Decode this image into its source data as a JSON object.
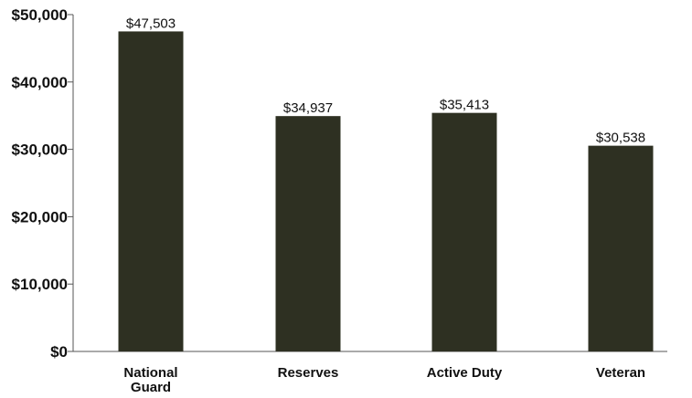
{
  "chart_data": {
    "type": "bar",
    "categories": [
      "National Guard",
      "Reserves",
      "Active Duty",
      "Veteran"
    ],
    "category_lines": [
      [
        "National",
        "Guard"
      ],
      [
        "Reserves"
      ],
      [
        "Active Duty"
      ],
      [
        "Veteran"
      ]
    ],
    "values": [
      47503,
      34937,
      35413,
      30538
    ],
    "data_labels": [
      "$47,503",
      "$34,937",
      "$35,413",
      "$30,538"
    ],
    "yticks": [
      0,
      10000,
      20000,
      30000,
      40000,
      50000
    ],
    "ytick_labels": [
      "$0",
      "$10,000",
      "$20,000",
      "$30,000",
      "$40,000",
      "$50,000"
    ],
    "ylim": [
      0,
      50000
    ],
    "title": "",
    "xlabel": "",
    "ylabel": "",
    "grid": false,
    "bar_color": "#2e3022"
  }
}
